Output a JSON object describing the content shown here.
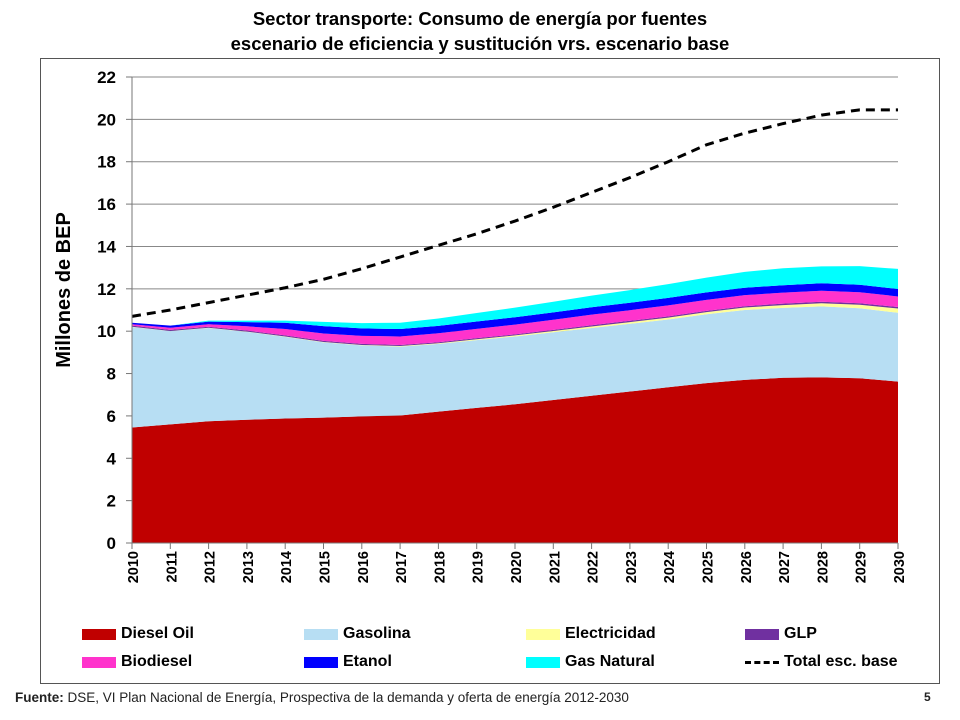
{
  "title_line1": "Sector transporte: Consumo de energía por fuentes",
  "title_line2": "escenario de eficiencia y sustitución vrs. escenario base",
  "footer_label": "Fuente:",
  "footer_text": " DSE, VI Plan Nacional de Energía, Prospectiva de la demanda y oferta de energía 2012-2030",
  "page_number": "5",
  "chart_data": {
    "type": "area",
    "stacked": true,
    "title": "Sector transporte: Consumo de energía por fuentes escenario de eficiencia y sustitución vrs. escenario base",
    "xlabel": "",
    "ylabel": "Millones de BEP",
    "ylim": [
      0,
      22
    ],
    "yticks": [
      0,
      2,
      4,
      6,
      8,
      10,
      12,
      14,
      16,
      18,
      20,
      22
    ],
    "grid": true,
    "legend_position": "bottom",
    "x": [
      "2010",
      "2011",
      "2012",
      "2013",
      "2014",
      "2015",
      "2016",
      "2017",
      "2018",
      "2019",
      "2020",
      "2021",
      "2022",
      "2023",
      "2024",
      "2025",
      "2026",
      "2027",
      "2028",
      "2029",
      "2030"
    ],
    "series": [
      {
        "name": "Diesel Oil",
        "color": "#C00000",
        "values": [
          5.45,
          5.6,
          5.75,
          5.82,
          5.88,
          5.92,
          5.98,
          6.02,
          6.2,
          6.38,
          6.55,
          6.75,
          6.95,
          7.15,
          7.35,
          7.55,
          7.7,
          7.8,
          7.82,
          7.78,
          7.62
        ]
      },
      {
        "name": "Gasolina",
        "color": "#B7DEF3",
        "values": [
          4.75,
          4.4,
          4.4,
          4.15,
          3.85,
          3.55,
          3.35,
          3.25,
          3.2,
          3.2,
          3.2,
          3.2,
          3.2,
          3.2,
          3.2,
          3.25,
          3.3,
          3.3,
          3.35,
          3.3,
          3.25
        ]
      },
      {
        "name": "Electricidad",
        "color": "#FFFF99",
        "values": [
          0.01,
          0.01,
          0.01,
          0.01,
          0.02,
          0.02,
          0.02,
          0.03,
          0.03,
          0.04,
          0.05,
          0.06,
          0.07,
          0.08,
          0.09,
          0.1,
          0.12,
          0.13,
          0.15,
          0.17,
          0.2
        ]
      },
      {
        "name": "GLP",
        "color": "#7030A0",
        "values": [
          0.05,
          0.05,
          0.05,
          0.05,
          0.05,
          0.05,
          0.05,
          0.05,
          0.05,
          0.05,
          0.05,
          0.05,
          0.06,
          0.06,
          0.06,
          0.06,
          0.06,
          0.07,
          0.07,
          0.07,
          0.07
        ]
      },
      {
        "name": "Biodiesel",
        "color": "#FF33CC",
        "values": [
          0.07,
          0.1,
          0.12,
          0.2,
          0.3,
          0.35,
          0.38,
          0.4,
          0.42,
          0.44,
          0.46,
          0.48,
          0.5,
          0.5,
          0.52,
          0.52,
          0.52,
          0.52,
          0.52,
          0.52,
          0.5
        ]
      },
      {
        "name": "Etanol",
        "color": "#0000FF",
        "values": [
          0.07,
          0.1,
          0.12,
          0.2,
          0.3,
          0.35,
          0.35,
          0.35,
          0.35,
          0.35,
          0.35,
          0.35,
          0.35,
          0.35,
          0.35,
          0.35,
          0.35,
          0.35,
          0.35,
          0.35,
          0.35
        ]
      },
      {
        "name": "Gas Natural",
        "color": "#00FFFF",
        "values": [
          0.0,
          0.0,
          0.05,
          0.07,
          0.1,
          0.2,
          0.25,
          0.3,
          0.35,
          0.4,
          0.45,
          0.5,
          0.55,
          0.6,
          0.65,
          0.7,
          0.75,
          0.8,
          0.8,
          0.88,
          0.95
        ]
      }
    ],
    "line_series": {
      "name": "Total esc. base",
      "color": "#000000",
      "dash": true,
      "values": [
        10.7,
        11.0,
        11.35,
        11.7,
        12.05,
        12.45,
        12.95,
        13.5,
        14.05,
        14.6,
        15.2,
        15.85,
        16.55,
        17.25,
        18.0,
        18.8,
        19.35,
        19.8,
        20.2,
        20.45,
        20.45
      ]
    }
  }
}
